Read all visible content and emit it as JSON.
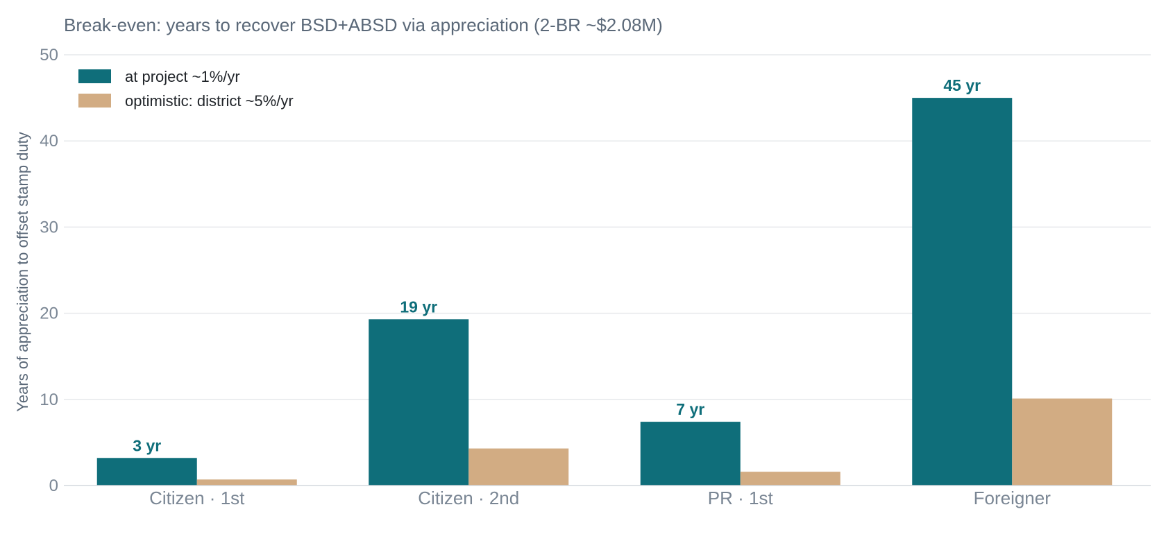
{
  "chart_data": {
    "type": "bar",
    "title": "Break-even: years to recover BSD+ABSD via appreciation (2-BR ~$2.08M)",
    "ylabel": "Years of appreciation to offset stamp duty",
    "xlabel": "",
    "ylim": [
      0,
      50
    ],
    "yticks": [
      0,
      10,
      20,
      30,
      40,
      50
    ],
    "grid": true,
    "legend_position": "top-left",
    "categories": [
      "Citizen · 1st",
      "Citizen · 2nd",
      "PR · 1st",
      "Foreigner"
    ],
    "series": [
      {
        "name": "at project ~1%/yr",
        "color": "#0f6e7a",
        "values": [
          3.2,
          19.3,
          7.4,
          45.0
        ],
        "labels": [
          "3 yr",
          "19 yr",
          "7 yr",
          "45 yr"
        ]
      },
      {
        "name": "optimistic: district ~5%/yr",
        "color": "#d2ac83",
        "values": [
          0.7,
          4.3,
          1.6,
          10.1
        ],
        "labels": null
      }
    ]
  }
}
